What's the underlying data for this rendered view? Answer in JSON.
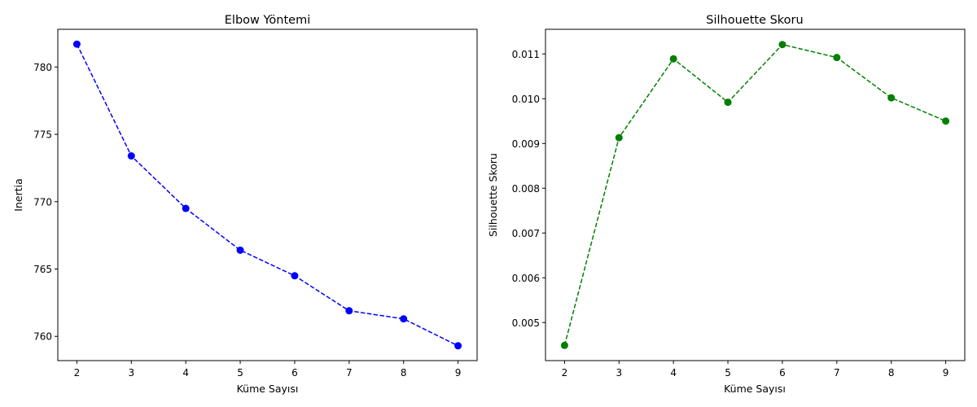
{
  "chart_data": [
    {
      "type": "line",
      "title": "Elbow Yöntemi",
      "xlabel": "Küme Sayısı",
      "ylabel": "Inertia",
      "x": [
        2,
        3,
        4,
        5,
        6,
        7,
        8,
        9
      ],
      "series": [
        {
          "values": [
            781.7,
            773.4,
            769.5,
            766.4,
            764.5,
            761.9,
            761.3,
            759.3
          ],
          "color": "#0000ff",
          "marker": "circle",
          "linestyle": "dashed"
        }
      ],
      "xticks": [
        2,
        3,
        4,
        5,
        6,
        7,
        8,
        9
      ],
      "yticks": [
        760,
        765,
        770,
        775,
        780
      ],
      "ytick_labels": [
        "760",
        "765",
        "770",
        "775",
        "780"
      ],
      "xlim": [
        1.65,
        9.35
      ],
      "ylim": [
        758.2,
        782.8
      ],
      "grid": false
    },
    {
      "type": "line",
      "title": "Silhouette Skoru",
      "xlabel": "Küme Sayısı",
      "ylabel": "Silhouette Skoru",
      "x": [
        2,
        3,
        4,
        5,
        6,
        7,
        8,
        9
      ],
      "series": [
        {
          "values": [
            0.00449,
            0.00913,
            0.01089,
            0.00992,
            0.01121,
            0.01092,
            0.01002,
            0.0095
          ],
          "color": "#008000",
          "marker": "circle",
          "linestyle": "dashed"
        }
      ],
      "xticks": [
        2,
        3,
        4,
        5,
        6,
        7,
        8,
        9
      ],
      "yticks": [
        0.005,
        0.006,
        0.007,
        0.008,
        0.009,
        0.01,
        0.011
      ],
      "ytick_labels": [
        "0.005",
        "0.006",
        "0.007",
        "0.008",
        "0.009",
        "0.010",
        "0.011"
      ],
      "xlim": [
        1.65,
        9.35
      ],
      "ylim": [
        0.00415,
        0.01155
      ],
      "grid": false
    }
  ]
}
